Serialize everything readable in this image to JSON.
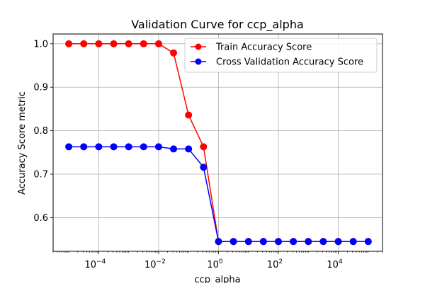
{
  "chart_data": {
    "type": "line",
    "title": "Validation Curve for ccp_alpha",
    "xlabel": "ccp_alpha",
    "ylabel": "Accuracy Score metric",
    "x_scale": "log",
    "xlim": [
      3e-06,
      300000
    ],
    "ylim": [
      0.5225,
      1.0225
    ],
    "x_ticks": [
      {
        "value": 0.0001,
        "base": "10",
        "exp": "−4"
      },
      {
        "value": 0.01,
        "base": "10",
        "exp": "−2"
      },
      {
        "value": 1,
        "base": "10",
        "exp": "0"
      },
      {
        "value": 100,
        "base": "10",
        "exp": "2"
      },
      {
        "value": 10000,
        "base": "10",
        "exp": "4"
      }
    ],
    "y_ticks": [
      {
        "value": 0.6,
        "label": "0.6"
      },
      {
        "value": 0.7,
        "label": "0.7"
      },
      {
        "value": 0.8,
        "label": "0.8"
      },
      {
        "value": 0.9,
        "label": "0.9"
      },
      {
        "value": 1.0,
        "label": "1.0"
      }
    ],
    "grid": true,
    "legend_position": "top-right",
    "x": [
      1e-05,
      3.16e-05,
      0.0001,
      0.000316,
      0.001,
      0.00316,
      0.01,
      0.0316,
      0.1,
      0.316,
      1,
      3.16,
      10,
      31.6,
      100,
      316,
      1000,
      3160,
      10000,
      31600,
      100000
    ],
    "series": [
      {
        "name": "Train Accuracy Score",
        "color": "#ff0000",
        "values": [
          1.0,
          1.0,
          1.0,
          1.0,
          1.0,
          1.0,
          1.0,
          0.979,
          0.836,
          0.763,
          0.545,
          0.545,
          0.545,
          0.545,
          0.545,
          0.545,
          0.545,
          0.545,
          0.545,
          0.545,
          0.545
        ]
      },
      {
        "name": "Cross Validation Accuracy Score",
        "color": "#0000ff",
        "values": [
          0.763,
          0.763,
          0.763,
          0.763,
          0.763,
          0.763,
          0.763,
          0.758,
          0.758,
          0.716,
          0.545,
          0.545,
          0.545,
          0.545,
          0.545,
          0.545,
          0.545,
          0.545,
          0.545,
          0.545,
          0.545
        ]
      }
    ]
  }
}
